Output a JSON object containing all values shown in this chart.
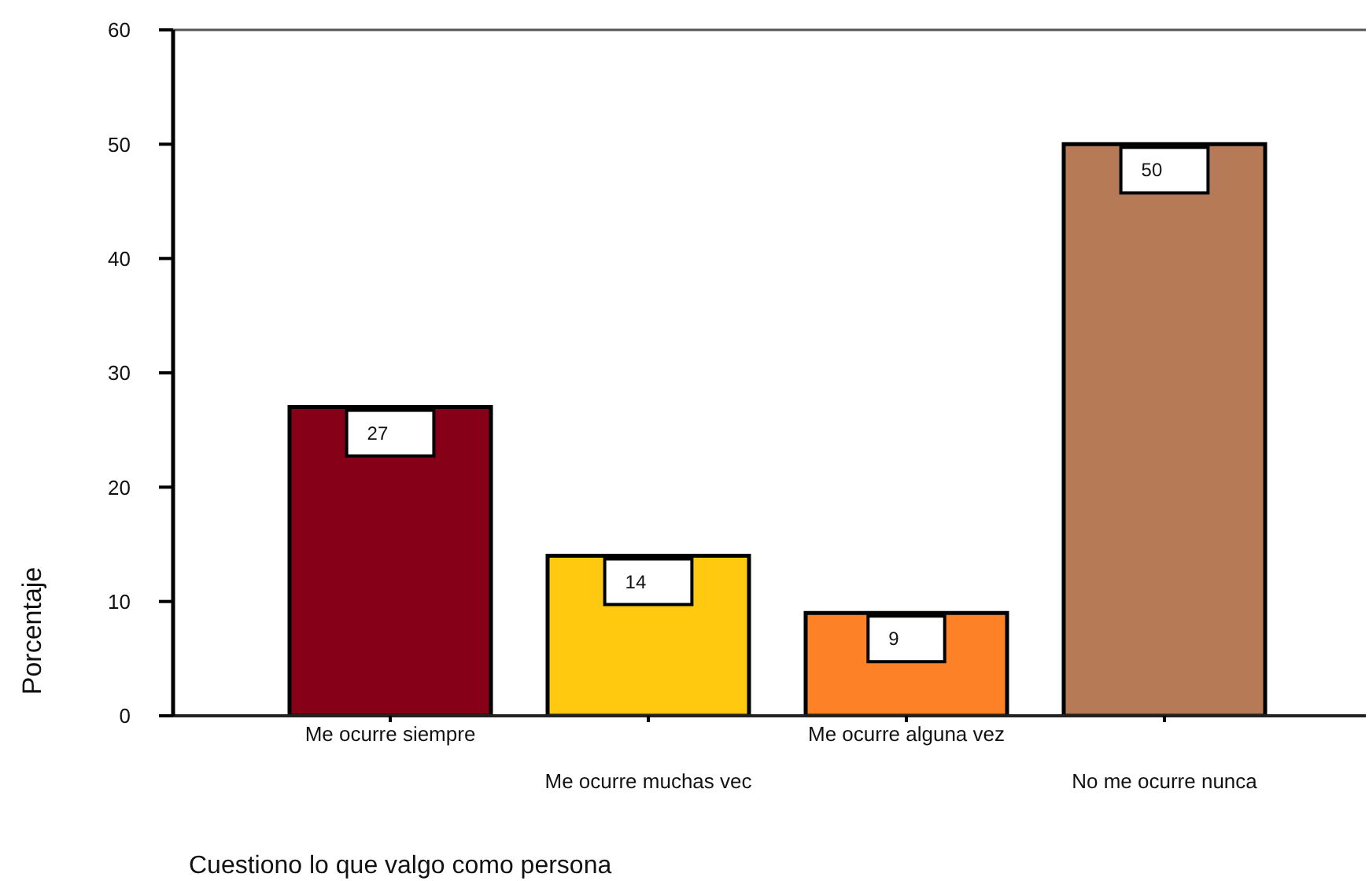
{
  "chart_data": {
    "type": "bar",
    "xlabel": "Cuestiono lo que valgo como persona",
    "ylabel": "Porcentaje",
    "categories": [
      "Me ocurre siempre",
      "Me ocurre muchas vec",
      "Me ocurre alguna vez",
      "No me ocurre nunca"
    ],
    "values": [
      27,
      14,
      9,
      50
    ],
    "colors": [
      "#860017",
      "#fec90f",
      "#fd8127",
      "#b77a56"
    ],
    "ylim": [
      0,
      60
    ],
    "yticks": [
      0,
      10,
      20,
      30,
      40,
      50,
      60
    ],
    "data_labels": true
  }
}
